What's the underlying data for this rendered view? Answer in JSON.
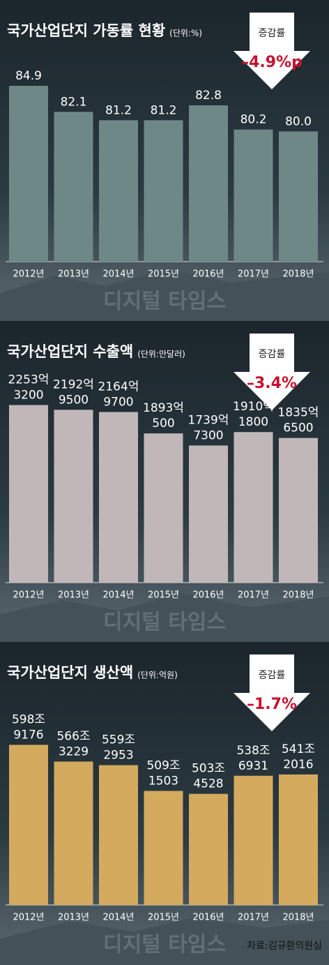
{
  "chart_data": [
    {
      "type": "bar",
      "title": "국가산업단지 가동률 현황",
      "subtitle": "(단위:%)",
      "categories": [
        "2012년",
        "2013년",
        "2014년",
        "2015년",
        "2016년",
        "2017년",
        "2018년"
      ],
      "values": [
        84.9,
        82.1,
        81.2,
        81.2,
        82.8,
        80.2,
        80.0
      ],
      "value_labels": [
        [
          "84.9"
        ],
        [
          "82.1"
        ],
        [
          "81.2"
        ],
        [
          "81.2"
        ],
        [
          "82.8"
        ],
        [
          "80.2"
        ],
        [
          "80.0"
        ]
      ],
      "color": "#6e8888",
      "ylim": [
        66,
        87
      ],
      "annotation": {
        "label": "증감률",
        "value": "–4.9%p"
      },
      "watermark": "디지털 타임스"
    },
    {
      "type": "bar",
      "title": "국가산업단지 수출액",
      "subtitle": "(단위:만달러)",
      "categories": [
        "2012년",
        "2013년",
        "2014년",
        "2015년",
        "2016년",
        "2017년",
        "2018년"
      ],
      "values": [
        22533200,
        21929500,
        21649700,
        18930500,
        17397300,
        19101800,
        18356500
      ],
      "value_labels": [
        [
          "2253억",
          "3200"
        ],
        [
          "2192억",
          "9500"
        ],
        [
          "2164억",
          "9700"
        ],
        [
          "1893억",
          "500"
        ],
        [
          "1739억",
          "7300"
        ],
        [
          "1910억",
          "1800"
        ],
        [
          "1835억",
          "6500"
        ]
      ],
      "color": "#c1b7b9",
      "ylim": [
        0,
        27000000
      ],
      "annotation": {
        "label": "증감률",
        "value": "–3.4%"
      },
      "watermark": "디지털 타임스"
    },
    {
      "type": "bar",
      "title": "국가산업단지 생산액",
      "subtitle": "(단위:억원)",
      "categories": [
        "2012년",
        "2013년",
        "2014년",
        "2015년",
        "2016년",
        "2017년",
        "2018년"
      ],
      "values": [
        5989176,
        5663229,
        5592953,
        5091503,
        5034528,
        5386931,
        5412016
      ],
      "value_labels": [
        [
          "598조",
          "9176"
        ],
        [
          "566조",
          "3229"
        ],
        [
          "559조",
          "2953"
        ],
        [
          "509조",
          "1503"
        ],
        [
          "503조",
          "4528"
        ],
        [
          "538조",
          "6931"
        ],
        [
          "541조",
          "2016"
        ]
      ],
      "color": "#d3aa5e",
      "ylim": [
        2870000,
        6770000
      ],
      "annotation": {
        "label": "증감률",
        "value": "–1.7%"
      },
      "watermark": "디지털 타임스"
    }
  ],
  "source": "자료:김규환의원실"
}
